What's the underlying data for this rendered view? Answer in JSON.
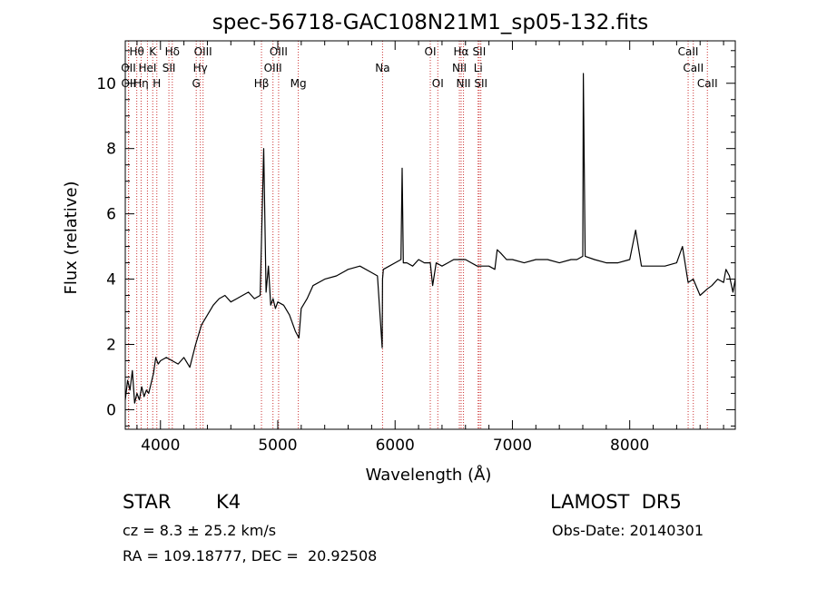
{
  "chart_data": {
    "type": "line",
    "title": "spec-56718-GAC108N21M1_sp05-132.fits",
    "xlabel": "Wavelength (Å)",
    "ylabel": "Flux (relative)",
    "xlim": [
      3700,
      8900
    ],
    "ylim": [
      -0.6,
      11.3
    ],
    "xticks": [
      4000,
      5000,
      6000,
      7000,
      8000
    ],
    "yticks": [
      0,
      2,
      4,
      6,
      8,
      10
    ],
    "grid": false,
    "legend": "none",
    "line_color": "#000000",
    "marker_color": "#cc3333",
    "spectrum": {
      "x": [
        3700,
        3720,
        3740,
        3760,
        3780,
        3800,
        3820,
        3840,
        3860,
        3880,
        3900,
        3920,
        3940,
        3960,
        3980,
        4000,
        4050,
        4100,
        4150,
        4200,
        4250,
        4300,
        4350,
        4400,
        4450,
        4500,
        4550,
        4600,
        4650,
        4700,
        4750,
        4800,
        4850,
        4880,
        4900,
        4920,
        4940,
        4960,
        4980,
        5000,
        5050,
        5100,
        5150,
        5180,
        5200,
        5250,
        5300,
        5400,
        5500,
        5600,
        5700,
        5800,
        5850,
        5890,
        5893,
        5900,
        5950,
        6000,
        6050,
        6060,
        6070,
        6100,
        6150,
        6200,
        6250,
        6300,
        6320,
        6350,
        6400,
        6450,
        6500,
        6550,
        6563,
        6600,
        6650,
        6700,
        6750,
        6800,
        6850,
        6870,
        6900,
        6950,
        7000,
        7100,
        7200,
        7300,
        7400,
        7500,
        7550,
        7600,
        7605,
        7620,
        7700,
        7800,
        7900,
        8000,
        8050,
        8100,
        8200,
        8300,
        8400,
        8450,
        8498,
        8542,
        8600,
        8662,
        8700,
        8750,
        8800,
        8820,
        8850,
        8880,
        8900
      ],
      "y": [
        0.3,
        0.9,
        0.6,
        1.2,
        0.2,
        0.5,
        0.3,
        0.7,
        0.4,
        0.6,
        0.5,
        0.8,
        1.1,
        1.6,
        1.4,
        1.5,
        1.6,
        1.5,
        1.4,
        1.6,
        1.3,
        2.0,
        2.6,
        2.9,
        3.2,
        3.4,
        3.5,
        3.3,
        3.4,
        3.5,
        3.6,
        3.4,
        3.5,
        8.0,
        3.6,
        4.4,
        3.2,
        3.4,
        3.1,
        3.3,
        3.2,
        2.9,
        2.4,
        2.2,
        3.1,
        3.4,
        3.8,
        4.0,
        4.1,
        4.3,
        4.4,
        4.2,
        4.1,
        1.9,
        4.0,
        4.3,
        4.4,
        4.5,
        4.6,
        7.4,
        4.5,
        4.5,
        4.4,
        4.6,
        4.5,
        4.5,
        3.8,
        4.5,
        4.4,
        4.5,
        4.6,
        4.6,
        4.6,
        4.6,
        4.5,
        4.4,
        4.4,
        4.4,
        4.3,
        4.9,
        4.8,
        4.6,
        4.6,
        4.5,
        4.6,
        4.6,
        4.5,
        4.6,
        4.6,
        4.7,
        10.3,
        4.7,
        4.6,
        4.5,
        4.5,
        4.6,
        5.5,
        4.4,
        4.4,
        4.4,
        4.5,
        5.0,
        3.9,
        4.0,
        3.5,
        3.7,
        3.8,
        4.0,
        3.9,
        4.3,
        4.1,
        3.6,
        4.0
      ]
    },
    "lines": [
      {
        "label": "Hθ",
        "x": 3798,
        "row": 0
      },
      {
        "label": "K",
        "x": 3934,
        "row": 0
      },
      {
        "label": "Hδ",
        "x": 4101,
        "row": 0
      },
      {
        "label": "OIII",
        "x": 4363,
        "row": 0
      },
      {
        "label": "OIII",
        "x": 5007,
        "row": 0
      },
      {
        "label": "OI",
        "x": 6300,
        "row": 0
      },
      {
        "label": "Hα",
        "x": 6563,
        "row": 0
      },
      {
        "label": "SII",
        "x": 6717,
        "row": 0
      },
      {
        "label": "CaII",
        "x": 8498,
        "row": 0
      },
      {
        "label": "OII",
        "x": 3727,
        "row": 1
      },
      {
        "label": "HeI",
        "x": 3889,
        "row": 1
      },
      {
        "label": "SII",
        "x": 4072,
        "row": 1
      },
      {
        "label": "Hγ",
        "x": 4340,
        "row": 1
      },
      {
        "label": "OIII",
        "x": 4959,
        "row": 1
      },
      {
        "label": "Na",
        "x": 5893,
        "row": 1
      },
      {
        "label": "NII",
        "x": 6548,
        "row": 1
      },
      {
        "label": "Li",
        "x": 6708,
        "row": 1
      },
      {
        "label": "CaII",
        "x": 8542,
        "row": 1
      },
      {
        "label": "OII",
        "x": 3729,
        "row": 2
      },
      {
        "label": "Hη",
        "x": 3835,
        "row": 2
      },
      {
        "label": "H",
        "x": 3969,
        "row": 2
      },
      {
        "label": "G",
        "x": 4305,
        "row": 2
      },
      {
        "label": "Hβ",
        "x": 4861,
        "row": 2
      },
      {
        "label": "Mg",
        "x": 5175,
        "row": 2
      },
      {
        "label": "OI",
        "x": 6364,
        "row": 2
      },
      {
        "label": "NII",
        "x": 6583,
        "row": 2
      },
      {
        "label": "SII",
        "x": 6731,
        "row": 2
      },
      {
        "label": "CaII",
        "x": 8662,
        "row": 2
      }
    ]
  },
  "info": {
    "object_class": "STAR",
    "subclass": "K4",
    "survey": "LAMOST  DR5",
    "redshift": "cz = 8.3 ± 25.2 km/s",
    "obs_date": "Obs-Date: 20140301",
    "coords": "RA = 109.18777, DEC =  20.92508"
  }
}
